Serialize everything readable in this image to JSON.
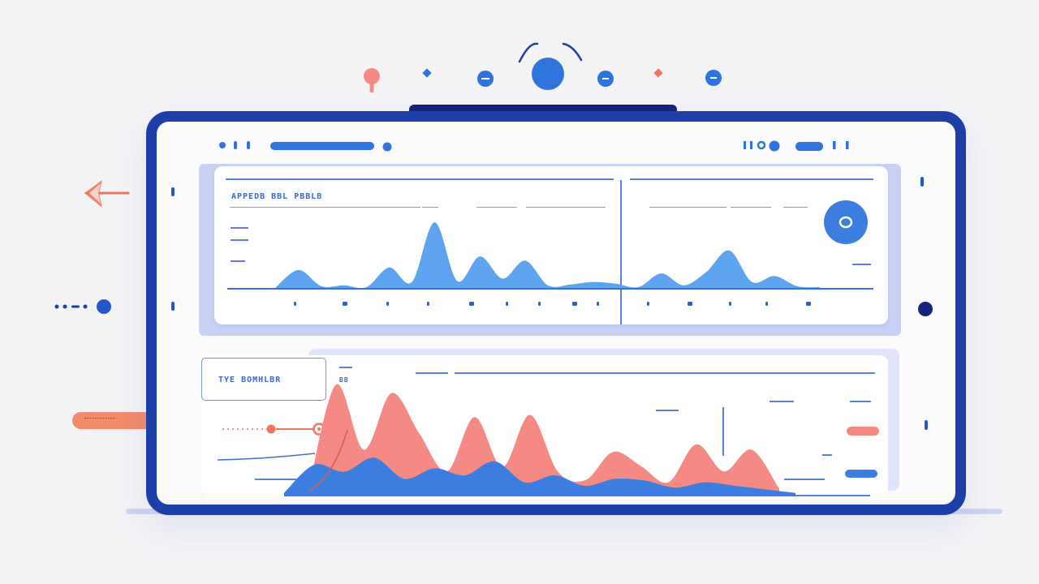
{
  "colors": {
    "frame": "#1d3fa8",
    "frame_dark": "#15247a",
    "accent_blue": "#2f73dc",
    "chart_blue": "#5ea3ef",
    "chart_coral": "#f58a84",
    "coral": "#f07460",
    "background": "#f3f3f6"
  },
  "top_icons": [
    "map-pin-icon",
    "diamond-icon",
    "minus-circle-icon",
    "wifi-circle-icon",
    "minus-circle-icon",
    "diamond-icon",
    "minus-circle-icon"
  ],
  "header": {
    "left_icons": [
      "signal-icon",
      "menu-icon"
    ],
    "right_icons": [
      "battery-icon",
      "record-icon",
      "toggle-icon",
      "pause-icon"
    ]
  },
  "chart_panel_top": {
    "title": "APPEDB BBL PBBLB"
  },
  "chart_panel_bottom": {
    "legend_title": "TYE BOMHLBR",
    "side_label": "BB"
  },
  "chart_data": [
    {
      "type": "area",
      "title": "APPEDB BBL PBBLB",
      "series": [
        {
          "x": [
            1,
            2,
            3,
            4,
            5,
            6,
            7,
            8,
            9,
            10,
            11,
            12,
            13,
            14,
            15,
            16,
            17,
            18,
            19,
            20,
            21,
            22,
            23,
            24,
            25
          ],
          "values": [
            2,
            22,
            3,
            4,
            2,
            25,
            8,
            78,
            9,
            38,
            12,
            33,
            4,
            5,
            8,
            6,
            2,
            18,
            4,
            20,
            45,
            8,
            15,
            3,
            2
          ]
        }
      ],
      "grid": false
    },
    {
      "type": "area",
      "title": "TYE BOMHLBR",
      "series": [
        {
          "x": [
            1,
            2,
            3,
            4,
            5,
            6,
            7,
            8,
            9,
            10,
            11,
            12,
            13,
            14,
            15,
            16,
            17,
            18
          ],
          "values": [
            3,
            100,
            40,
            92,
            55,
            20,
            70,
            24,
            72,
            20,
            12,
            38,
            25,
            10,
            45,
            20,
            40,
            4
          ]
        },
        {
          "x": [
            1,
            2,
            3,
            4,
            5,
            6,
            7,
            8,
            9,
            10,
            11,
            12,
            13,
            14,
            15,
            16,
            17,
            18
          ],
          "values": [
            2,
            18,
            14,
            22,
            10,
            16,
            12,
            20,
            8,
            12,
            6,
            10,
            9,
            5,
            8,
            6,
            4,
            2
          ]
        }
      ],
      "grid": false
    }
  ]
}
